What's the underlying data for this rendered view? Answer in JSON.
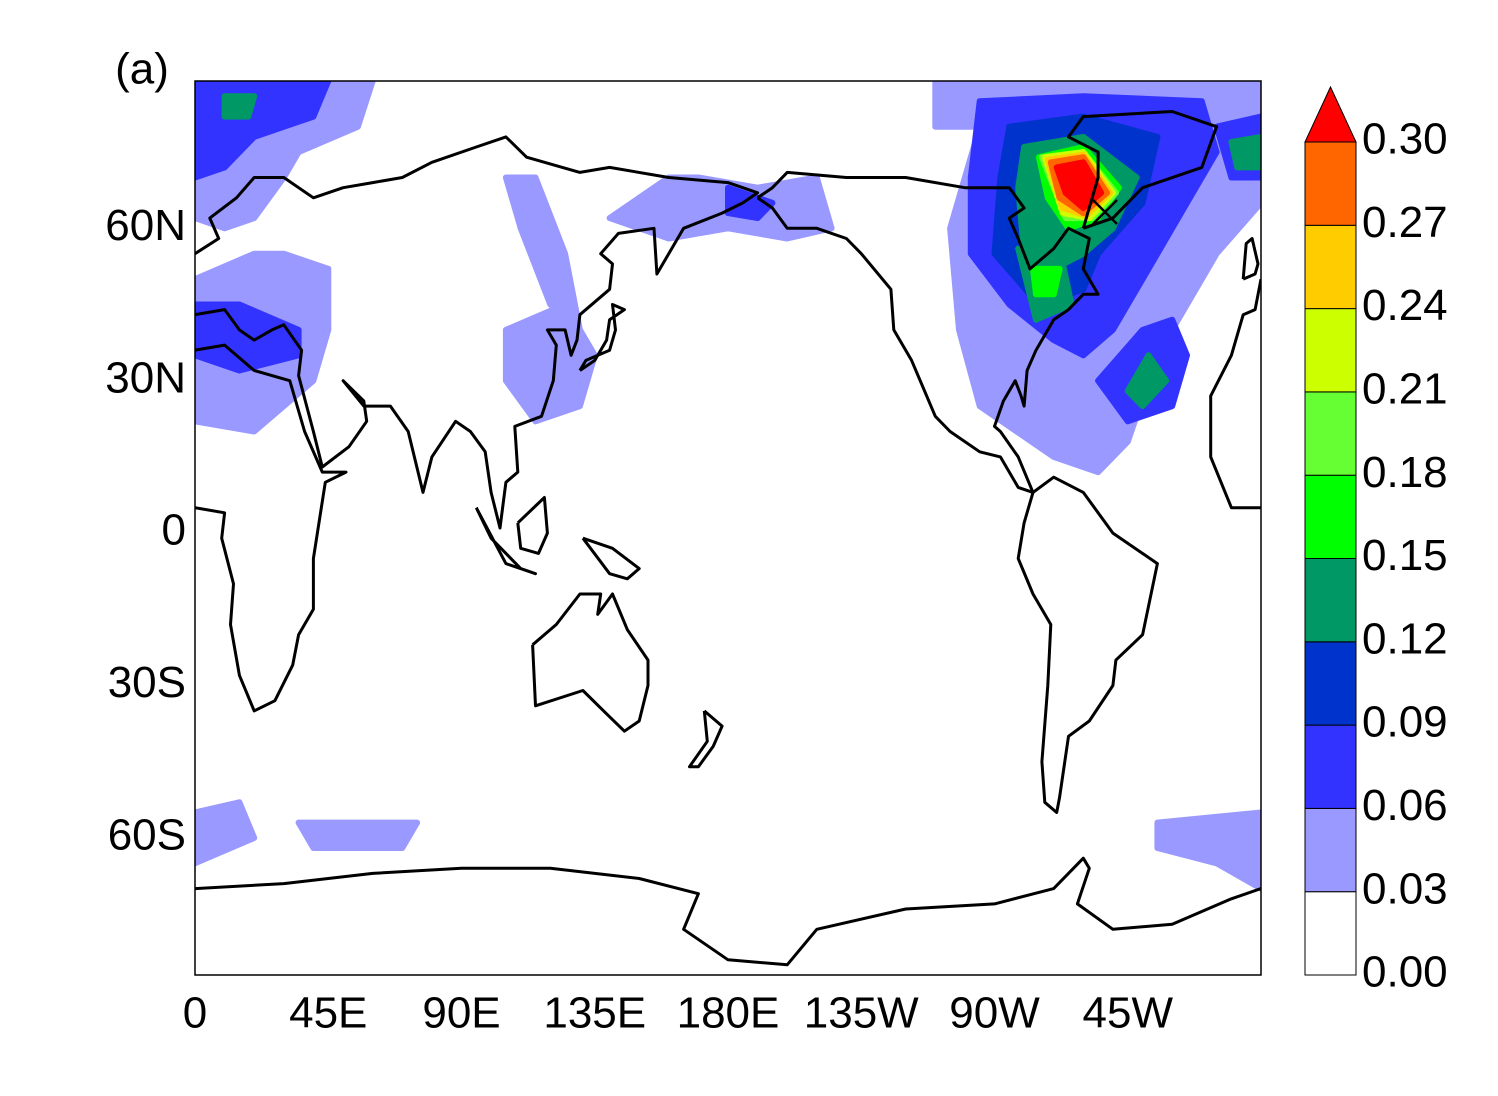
{
  "chart_data": {
    "type": "map",
    "title": "(a)",
    "xlim": [
      0,
      360
    ],
    "ylim": [
      -87,
      89
    ],
    "xticks": [
      0,
      {
        "value": 45,
        "label": "45E"
      },
      {
        "value": 90,
        "label": "90E"
      },
      {
        "value": 135,
        "label": "135E"
      },
      {
        "value": 180,
        "label": "180E"
      },
      {
        "value": 225,
        "label": "135W"
      },
      {
        "value": 270,
        "label": "90W"
      },
      {
        "value": 315,
        "label": "45W"
      }
    ],
    "yticks": [
      {
        "value": 60,
        "label": "60N"
      },
      {
        "value": 30,
        "label": "30N"
      },
      0,
      {
        "value": -30,
        "label": "30S"
      },
      {
        "value": -60,
        "label": "60S"
      }
    ],
    "colorbar": {
      "levels": [
        {
          "value": 0,
          "label": "0.00"
        },
        0.03,
        0.06,
        0.09,
        0.12,
        0.15,
        0.18,
        0.21,
        0.24,
        0.27,
        {
          "value": 0.3,
          "label": "0.30"
        }
      ],
      "colors": [
        "#ffffff",
        "#9999ff",
        "#3333ff",
        "#0033cc",
        "#009966",
        "#00ff00",
        "#66ff33",
        "#ccff00",
        "#ffcc00",
        "#ff6600",
        "#ff0000"
      ]
    }
  }
}
